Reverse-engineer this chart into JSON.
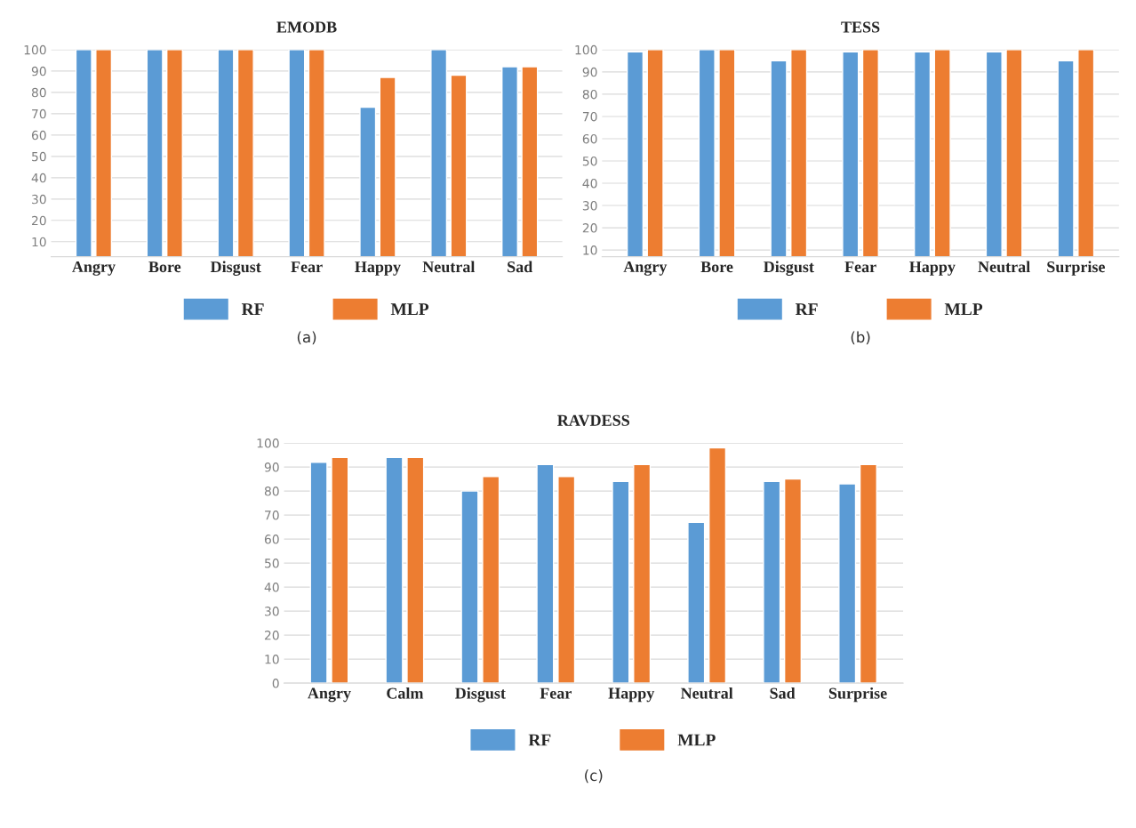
{
  "chart_data": [
    {
      "type": "bar",
      "title": "EMODB",
      "categories": [
        "Angry",
        "Bore",
        "Disgust",
        "Fear",
        "Happy",
        "Neutral",
        "Sad"
      ],
      "series": [
        {
          "name": "RF",
          "color": "#5b9bd5",
          "values": [
            100,
            100,
            100,
            100,
            73,
            100,
            92
          ]
        },
        {
          "name": "MLP",
          "color": "#ed7d31",
          "values": [
            100,
            100,
            100,
            100,
            87,
            88,
            92
          ]
        }
      ],
      "ylim": [
        3,
        100
      ],
      "yticks": [
        10,
        20,
        30,
        40,
        50,
        60,
        70,
        80,
        90,
        100
      ],
      "grid": "y",
      "legend": "bottom",
      "annotations": [
        "(a)"
      ]
    },
    {
      "type": "bar",
      "title": "TESS",
      "categories": [
        "Angry",
        "Bore",
        "Disgust",
        "Fear",
        "Happy",
        "Neutral",
        "Surprise"
      ],
      "series": [
        {
          "name": "RF",
          "color": "#5b9bd5",
          "values": [
            99,
            100,
            95,
            99,
            99,
            99,
            95
          ]
        },
        {
          "name": "MLP",
          "color": "#ed7d31",
          "values": [
            100,
            100,
            100,
            100,
            100,
            100,
            100
          ]
        }
      ],
      "ylim": [
        7,
        100
      ],
      "yticks": [
        10,
        20,
        30,
        40,
        50,
        60,
        70,
        80,
        90,
        100
      ],
      "grid": "y",
      "legend": "bottom",
      "annotations": [
        "(b)"
      ]
    },
    {
      "type": "bar",
      "title": "RAVDESS",
      "categories": [
        "Angry",
        "Calm",
        "Disgust",
        "Fear",
        "Happy",
        "Neutral",
        "Sad",
        "Surprise"
      ],
      "series": [
        {
          "name": "RF",
          "color": "#5b9bd5",
          "values": [
            92,
            94,
            80,
            91,
            84,
            67,
            84,
            83
          ]
        },
        {
          "name": "MLP",
          "color": "#ed7d31",
          "values": [
            94,
            94,
            86,
            86,
            91,
            98,
            85,
            91
          ]
        }
      ],
      "ylim": [
        0,
        100
      ],
      "yticks": [
        0,
        10,
        20,
        30,
        40,
        50,
        60,
        70,
        80,
        90,
        100
      ],
      "grid": "y",
      "legend": "bottom",
      "annotations": [
        "(c)"
      ]
    }
  ]
}
